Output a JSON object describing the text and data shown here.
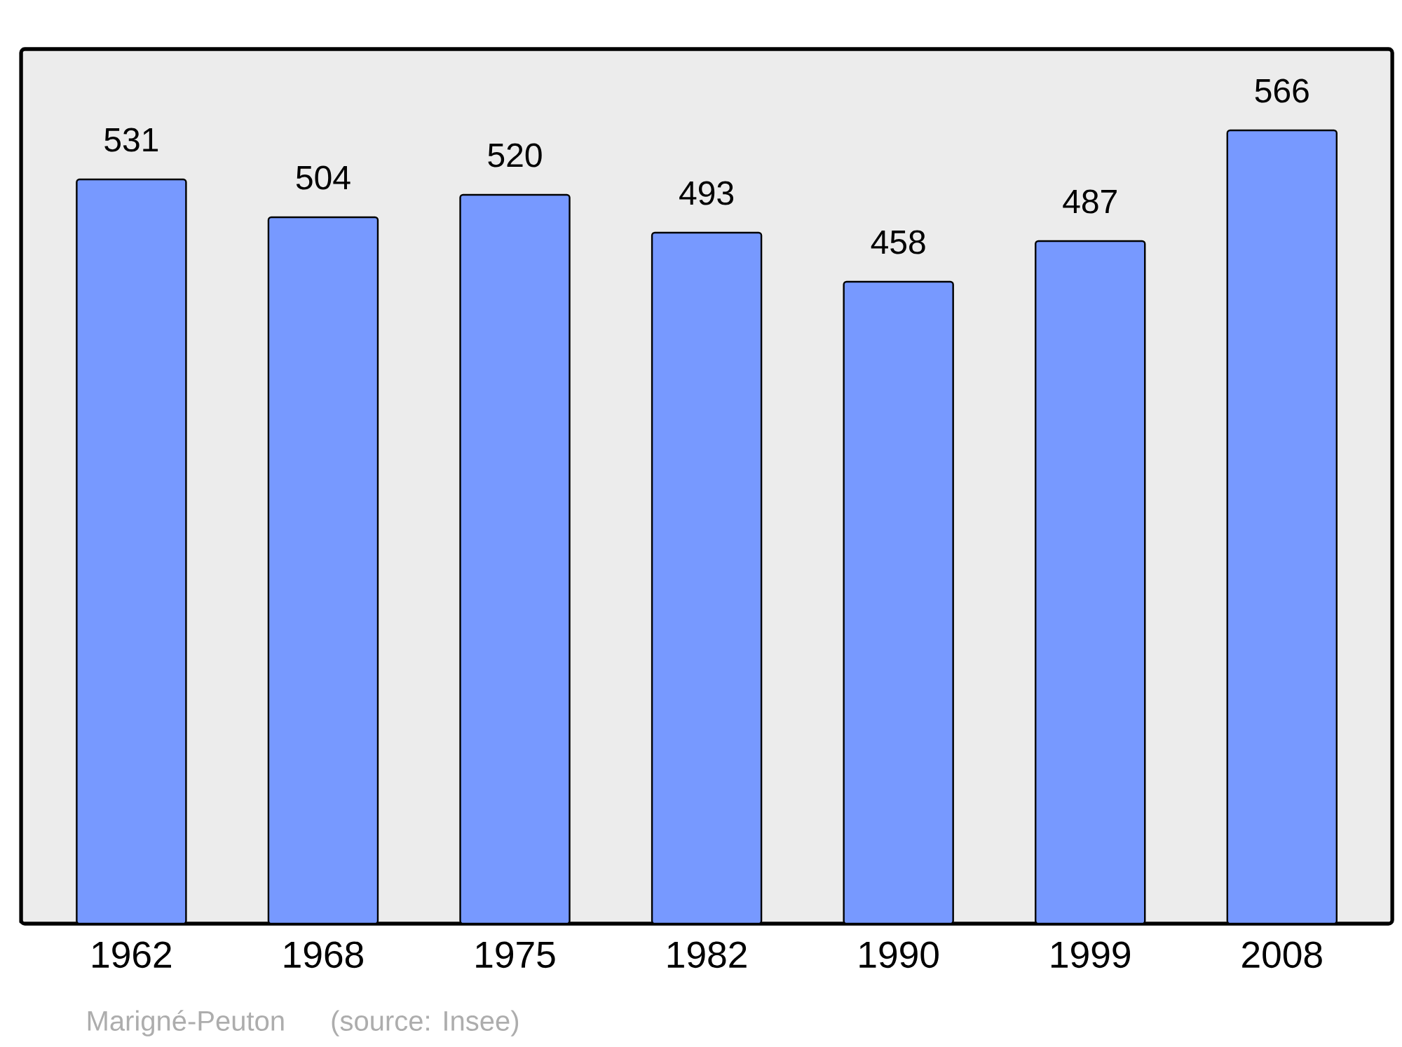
{
  "chart_data": {
    "type": "bar",
    "categories": [
      "1962",
      "1968",
      "1975",
      "1982",
      "1990",
      "1999",
      "2008"
    ],
    "values": [
      531,
      504,
      520,
      493,
      458,
      487,
      566
    ],
    "color": "#7799ff",
    "ylim": [
      0,
      624
    ],
    "data_labels": true,
    "annotations": [
      "Marigné-Peuton",
      "(source: Insee)"
    ]
  }
}
